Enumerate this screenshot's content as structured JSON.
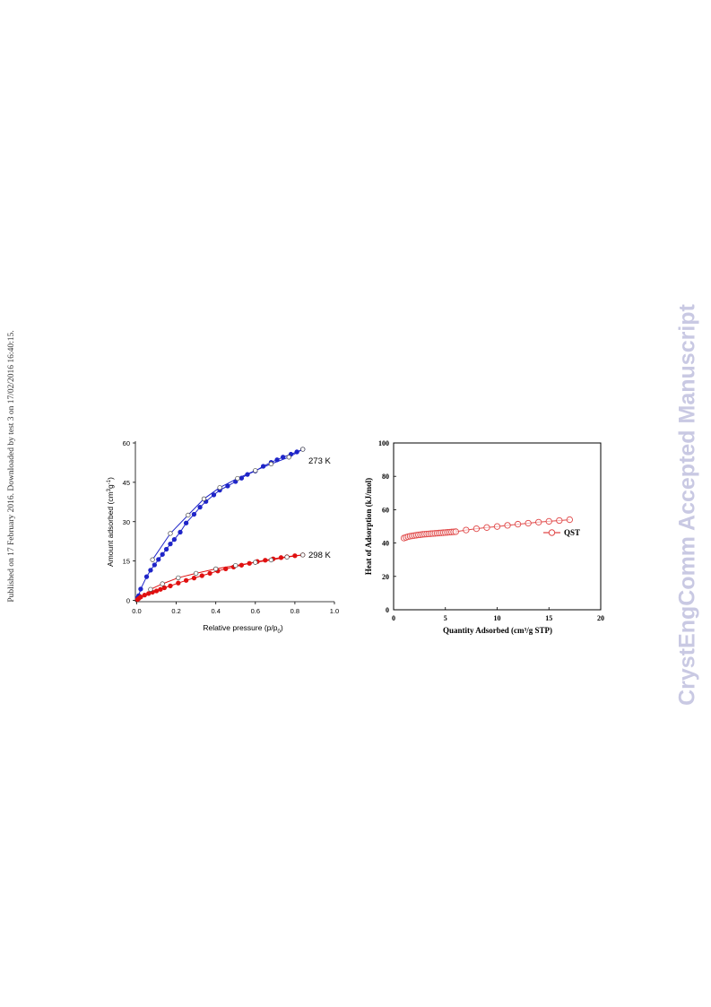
{
  "page": {
    "side_note": "Published on 17 February 2016. Downloaded by test 3 on 17/02/2016 16:40:15.",
    "watermark": "CrystEngComm Accepted Manuscript"
  },
  "colors": {
    "blue": "#1f25c8",
    "red": "#e01010",
    "qst": "#e04848"
  },
  "chart_data": [
    {
      "type": "line",
      "xlabel": "Relative pressure (p/p0)",
      "ylabel": "Amount adsorbed (cm3g-1)",
      "xlim": [
        0,
        1.0
      ],
      "ylim": [
        0,
        60
      ],
      "xticks": [
        "0.0",
        "0.2",
        "0.4",
        "0.6",
        "0.8",
        "1.0"
      ],
      "yticks": [
        "0",
        "15",
        "30",
        "45",
        "60"
      ],
      "grid": false,
      "annotations": [
        "273 K",
        "298 K"
      ],
      "series": [
        {
          "label": "273 K",
          "marker": "filled",
          "color": "#1f25c8",
          "points": [
            [
              0.004,
              0.9
            ],
            [
              0.01,
              1.8
            ],
            [
              0.02,
              4.3
            ],
            [
              0.05,
              9.0
            ],
            [
              0.07,
              11.5
            ],
            [
              0.09,
              13.5
            ],
            [
              0.11,
              15.6
            ],
            [
              0.13,
              17.5
            ],
            [
              0.15,
              19.5
            ],
            [
              0.17,
              21.5
            ],
            [
              0.19,
              23.2
            ],
            [
              0.22,
              26.0
            ],
            [
              0.25,
              29.5
            ],
            [
              0.29,
              32.8
            ],
            [
              0.32,
              35.5
            ],
            [
              0.35,
              37.7
            ],
            [
              0.39,
              40.2
            ],
            [
              0.42,
              42.0
            ],
            [
              0.46,
              43.6
            ],
            [
              0.5,
              45.3
            ],
            [
              0.53,
              46.6
            ],
            [
              0.56,
              48.0
            ],
            [
              0.6,
              49.3
            ],
            [
              0.64,
              51.1
            ],
            [
              0.68,
              52.6
            ],
            [
              0.71,
              53.6
            ],
            [
              0.74,
              54.6
            ],
            [
              0.78,
              55.7
            ],
            [
              0.81,
              56.6
            ],
            [
              0.84,
              57.6
            ]
          ]
        },
        {
          "label": "273 K",
          "marker": "open",
          "color": "#1f25c8",
          "points": [
            [
              0.84,
              57.6
            ],
            [
              0.77,
              54.6
            ],
            [
              0.68,
              52.0
            ],
            [
              0.6,
              49.5
            ],
            [
              0.51,
              46.5
            ],
            [
              0.42,
              43.0
            ],
            [
              0.34,
              38.7
            ],
            [
              0.26,
              32.5
            ],
            [
              0.17,
              25.5
            ],
            [
              0.08,
              15.5
            ]
          ]
        },
        {
          "label": "298 K",
          "marker": "filled",
          "color": "#e01010",
          "points": [
            [
              0.004,
              0.3
            ],
            [
              0.01,
              0.7
            ],
            [
              0.02,
              1.3
            ],
            [
              0.04,
              2.0
            ],
            [
              0.06,
              2.6
            ],
            [
              0.08,
              3.1
            ],
            [
              0.1,
              3.6
            ],
            [
              0.12,
              4.2
            ],
            [
              0.14,
              4.8
            ],
            [
              0.17,
              5.5
            ],
            [
              0.21,
              6.6
            ],
            [
              0.25,
              7.6
            ],
            [
              0.29,
              8.5
            ],
            [
              0.33,
              9.4
            ],
            [
              0.37,
              10.3
            ],
            [
              0.41,
              11.2
            ],
            [
              0.45,
              12.0
            ],
            [
              0.49,
              12.7
            ],
            [
              0.53,
              13.4
            ],
            [
              0.57,
              14.1
            ],
            [
              0.61,
              14.8
            ],
            [
              0.65,
              15.3
            ],
            [
              0.69,
              15.8
            ],
            [
              0.73,
              16.3
            ],
            [
              0.76,
              16.6
            ],
            [
              0.8,
              17.0
            ],
            [
              0.84,
              17.3
            ]
          ]
        },
        {
          "label": "298 K",
          "marker": "open",
          "color": "#e01010",
          "points": [
            [
              0.84,
              17.3
            ],
            [
              0.76,
              16.5
            ],
            [
              0.68,
              15.4
            ],
            [
              0.6,
              14.5
            ],
            [
              0.5,
              13.3
            ],
            [
              0.4,
              12.0
            ],
            [
              0.3,
              10.3
            ],
            [
              0.21,
              8.6
            ],
            [
              0.13,
              6.3
            ],
            [
              0.07,
              4.2
            ]
          ]
        }
      ]
    },
    {
      "type": "line",
      "xlabel": "Quantity Adsorbed (cm³/g STP)",
      "ylabel": "Heat of Adsorption (kJ/mol)",
      "xlim": [
        0,
        20
      ],
      "ylim": [
        0,
        100
      ],
      "xticks": [
        "0",
        "5",
        "10",
        "15",
        "20"
      ],
      "yticks": [
        "0",
        "20",
        "40",
        "60",
        "80",
        "100"
      ],
      "grid": false,
      "legend": "right",
      "series": [
        {
          "name": "QST",
          "marker": "open",
          "color": "#e04848",
          "x": [
            1.0,
            1.2,
            1.4,
            1.6,
            1.8,
            2.0,
            2.2,
            2.4,
            2.6,
            2.8,
            3.0,
            3.2,
            3.4,
            3.6,
            3.8,
            4.0,
            4.2,
            4.4,
            4.6,
            4.8,
            5.0,
            5.2,
            5.4,
            5.6,
            5.8,
            6.0,
            7.0,
            8.0,
            9.0,
            10.0,
            11.0,
            12.0,
            13.0,
            14.0,
            15.0,
            16.0,
            17.0
          ],
          "y": [
            43.0,
            43.4,
            43.8,
            44.1,
            44.3,
            44.5,
            44.7,
            44.9,
            45.0,
            45.2,
            45.3,
            45.4,
            45.5,
            45.6,
            45.7,
            45.8,
            45.9,
            46.0,
            46.1,
            46.2,
            46.3,
            46.4,
            46.5,
            46.6,
            46.7,
            46.8,
            47.8,
            48.6,
            49.3,
            49.9,
            50.6,
            51.3,
            51.9,
            52.5,
            53.0,
            53.5,
            54.0
          ]
        }
      ]
    }
  ]
}
